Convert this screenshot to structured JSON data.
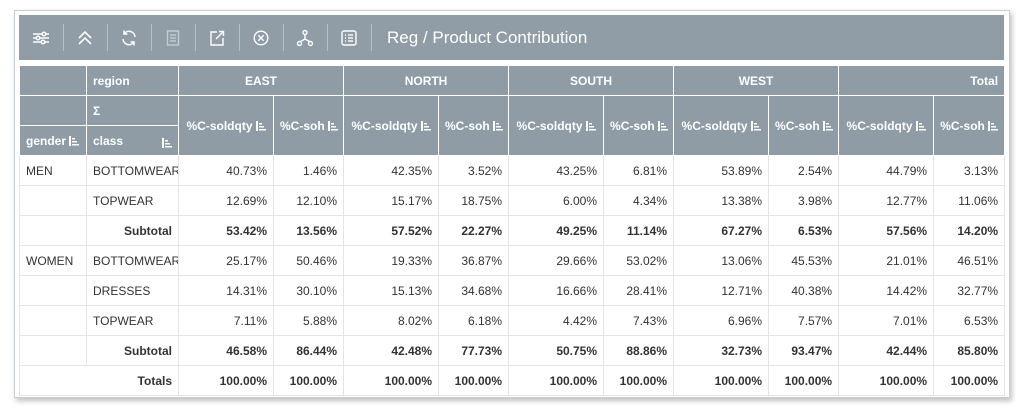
{
  "toolbar": {
    "title": "Reg / Product Contribution",
    "icons": [
      "sliders-icon",
      "collapse-up-icon",
      "refresh-icon",
      "document-icon",
      "export-icon",
      "close-circle-icon",
      "hierarchy-icon",
      "list-icon"
    ]
  },
  "header": {
    "region_label": "region",
    "sigma_label": "Σ",
    "gender_label": "gender",
    "class_label": "class",
    "regions": [
      "EAST",
      "NORTH",
      "SOUTH",
      "WEST",
      "Total"
    ],
    "metric_a": "%C-soldqty",
    "metric_b": "%C-soh"
  },
  "rows": [
    {
      "gender": "MEN",
      "class": "BOTTOMWEAR",
      "values": [
        "40.73%",
        "1.46%",
        "42.35%",
        "3.52%",
        "43.25%",
        "6.81%",
        "53.89%",
        "2.54%",
        "44.79%",
        "3.13%"
      ]
    },
    {
      "gender": "",
      "class": "TOPWEAR",
      "values": [
        "12.69%",
        "12.10%",
        "15.17%",
        "18.75%",
        "6.00%",
        "4.34%",
        "13.38%",
        "3.98%",
        "12.77%",
        "11.06%"
      ]
    },
    {
      "gender": "",
      "class": "Subtotal",
      "subtotal": true,
      "values": [
        "53.42%",
        "13.56%",
        "57.52%",
        "22.27%",
        "49.25%",
        "11.14%",
        "67.27%",
        "6.53%",
        "57.56%",
        "14.20%"
      ]
    },
    {
      "gender": "WOMEN",
      "class": "BOTTOMWEAR",
      "values": [
        "25.17%",
        "50.46%",
        "19.33%",
        "36.87%",
        "29.66%",
        "53.02%",
        "13.06%",
        "45.53%",
        "21.01%",
        "46.51%"
      ]
    },
    {
      "gender": "",
      "class": "DRESSES",
      "values": [
        "14.31%",
        "30.10%",
        "15.13%",
        "34.68%",
        "16.66%",
        "28.41%",
        "12.71%",
        "40.38%",
        "14.42%",
        "32.77%"
      ]
    },
    {
      "gender": "",
      "class": "TOPWEAR",
      "values": [
        "7.11%",
        "5.88%",
        "8.02%",
        "6.18%",
        "4.42%",
        "7.43%",
        "6.96%",
        "7.57%",
        "7.01%",
        "6.53%"
      ]
    },
    {
      "gender": "",
      "class": "Subtotal",
      "subtotal": true,
      "values": [
        "46.58%",
        "86.44%",
        "42.48%",
        "77.73%",
        "50.75%",
        "88.86%",
        "32.73%",
        "93.47%",
        "42.44%",
        "85.80%"
      ]
    }
  ],
  "totals": {
    "label": "Totals",
    "values": [
      "100.00%",
      "100.00%",
      "100.00%",
      "100.00%",
      "100.00%",
      "100.00%",
      "100.00%",
      "100.00%",
      "100.00%",
      "100.00%"
    ]
  }
}
